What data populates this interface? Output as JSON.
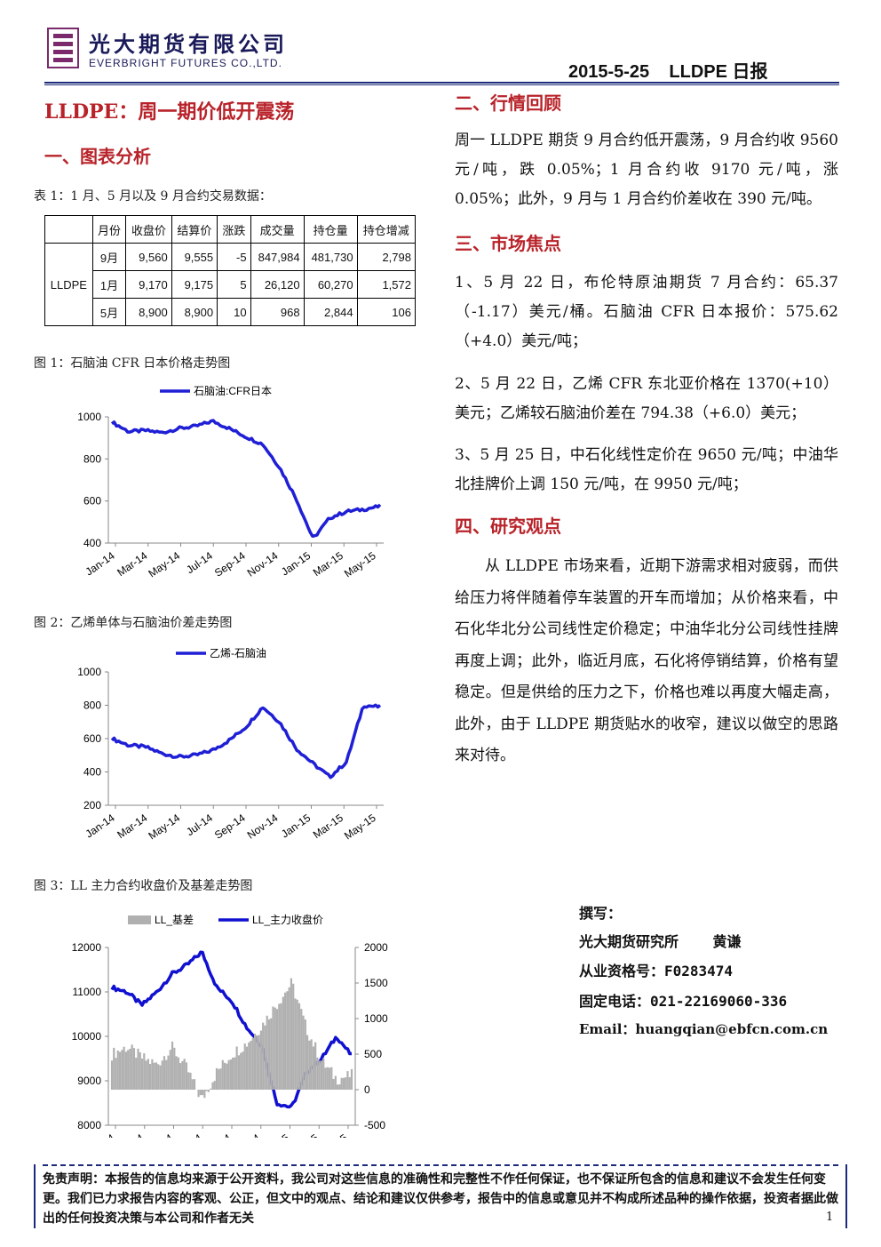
{
  "header": {
    "company_cn": "光大期货有限公司",
    "company_en": "EVERBRIGHT FUTURES CO.,LTD.",
    "date_title": "2015-5-25    LLDPE 日报"
  },
  "title": "LLDPE：周一期价低开震荡",
  "section1": {
    "heading": "一、图表分析",
    "table_caption": "表 1：1 月、5 月以及 9 月合约交易数据：",
    "table": {
      "headers": [
        "",
        "月份",
        "收盘价",
        "结算价",
        "涨跌",
        "成交量",
        "持仓量",
        "持仓增减"
      ],
      "product": "LLDPE",
      "rows": [
        [
          "9月",
          "9,560",
          "9,555",
          "-5",
          "847,984",
          "481,730",
          "2,798"
        ],
        [
          "1月",
          "9,170",
          "9,175",
          "5",
          "26,120",
          "60,270",
          "1,572"
        ],
        [
          "5月",
          "8,900",
          "8,900",
          "10",
          "968",
          "2,844",
          "106"
        ]
      ]
    }
  },
  "fig1": {
    "caption": "图 1：石脑油 CFR 日本价格走势图"
  },
  "fig2": {
    "caption": "图 2：乙烯单体与石脑油价差走势图"
  },
  "fig3": {
    "caption": "图 3：LL 主力合约收盘价及基差走势图"
  },
  "chart_data": [
    {
      "type": "line",
      "legend": [
        "石脑油:CFR日本"
      ],
      "ylim": [
        400,
        1000
      ],
      "yticks": [
        400,
        600,
        800,
        1000
      ],
      "xticks": [
        "Jan-14",
        "Mar-14",
        "May-14",
        "Jul-14",
        "Sep-14",
        "Nov-14",
        "Jan-15",
        "Mar-15",
        "May-15"
      ],
      "color": "#1f1fd6",
      "series": [
        {
          "name": "石脑油:CFR日本",
          "x": [
            "Jan-14",
            "Feb-14",
            "Mar-14",
            "Apr-14",
            "May-14",
            "Jun-14",
            "Jul-14",
            "Aug-14",
            "Sep-14",
            "Oct-14",
            "Nov-14",
            "Dec-14",
            "Jan-15",
            "Feb-15",
            "Mar-15",
            "Apr-15",
            "May-15"
          ],
          "values": [
            975,
            930,
            935,
            925,
            945,
            955,
            980,
            945,
            905,
            870,
            760,
            610,
            420,
            520,
            550,
            560,
            575
          ]
        }
      ]
    },
    {
      "type": "line",
      "legend": [
        "乙烯-石脑油"
      ],
      "ylim": [
        200,
        1000
      ],
      "yticks": [
        200,
        400,
        600,
        800,
        1000
      ],
      "xticks": [
        "Jan-14",
        "Mar-14",
        "May-14",
        "Jul-14",
        "Sep-14",
        "Nov-14",
        "Jan-15",
        "Mar-15",
        "May-15"
      ],
      "color": "#1f1fd6",
      "series": [
        {
          "name": "乙烯-石脑油",
          "x": [
            "Jan-14",
            "Feb-14",
            "Mar-14",
            "Apr-14",
            "May-14",
            "Jun-14",
            "Jul-14",
            "Aug-14",
            "Sep-14",
            "Oct-14",
            "Nov-14",
            "Dec-14",
            "Jan-15",
            "Feb-15",
            "Mar-15",
            "Apr-15",
            "May-15"
          ],
          "values": [
            600,
            560,
            550,
            510,
            490,
            500,
            530,
            590,
            670,
            790,
            700,
            540,
            450,
            370,
            460,
            800,
            790
          ]
        }
      ]
    },
    {
      "type": "line",
      "legend": [
        "LL_基差",
        "LL_主力收盘价"
      ],
      "ylim_left": [
        8000,
        12000
      ],
      "yticks_left": [
        8000,
        9000,
        10000,
        11000,
        12000
      ],
      "ylim_right": [
        -500,
        2000
      ],
      "yticks_right": [
        -500,
        0,
        500,
        1000,
        1500,
        2000
      ],
      "xticks": [
        "Jan-14",
        "Mar-14",
        "May-14",
        "Jul-14",
        "Sep-14",
        "Nov-14",
        "Jan-15",
        "Mar-15",
        "May-15"
      ],
      "series": [
        {
          "name": "LL_主力收盘价",
          "axis": "left",
          "color": "#1010d0",
          "x": [
            "Jan-14",
            "Feb-14",
            "Mar-14",
            "Apr-14",
            "May-14",
            "Jun-14",
            "Jul-14",
            "Aug-14",
            "Sep-14",
            "Oct-14",
            "Nov-14",
            "Dec-14",
            "Jan-15",
            "Feb-15",
            "Mar-15",
            "Apr-15",
            "May-15"
          ],
          "values": [
            11100,
            11000,
            10700,
            11000,
            11400,
            11600,
            11900,
            11100,
            10800,
            10200,
            9800,
            8500,
            8400,
            9200,
            9500,
            10000,
            9560
          ]
        },
        {
          "name": "LL_基差",
          "axis": "right",
          "color": "#b0b0b0",
          "type": "area",
          "x": [
            "Jan-14",
            "Feb-14",
            "Mar-14",
            "Apr-14",
            "May-14",
            "Jun-14",
            "Jul-14",
            "Aug-14",
            "Sep-14",
            "Oct-14",
            "Nov-14",
            "Dec-14",
            "Jan-15",
            "Feb-15",
            "Mar-15",
            "Apr-15",
            "May-15"
          ],
          "values": [
            500,
            600,
            450,
            350,
            600,
            300,
            -150,
            250,
            500,
            650,
            900,
            1200,
            1500,
            850,
            400,
            150,
            200
          ]
        }
      ]
    }
  ],
  "section2": {
    "heading": "二、行情回顾",
    "text": "周一 LLDPE 期货 9 月合约低开震荡，9 月合约收 9560 元/吨，跌 0.05%；1 月合约收 9170 元/吨，涨 0.05%；此外，9 月与 1 月合约价差收在 390 元/吨。"
  },
  "section3": {
    "heading": "三、市场焦点",
    "items": [
      "1、5 月 22 日，布伦特原油期货 7 月合约：65.37（-1.17）美元/桶。石脑油 CFR 日本报价：575.62（+4.0）美元/吨；",
      "2、5 月 22 日，乙烯 CFR 东北亚价格在 1370(+10）美元；乙烯较石脑油价差在 794.38（+6.0）美元；",
      "3、5 月 25 日，中石化线性定价在 9650 元/吨；中油华北挂牌价上调 150 元/吨，在 9950 元/吨；"
    ]
  },
  "section4": {
    "heading": "四、研究观点",
    "text": "从 LLDPE 市场来看，近期下游需求相对疲弱，而供给压力将伴随着停车装置的开车而增加；从价格来看，中石化华北分公司线性定价稳定；中油华北分公司线性挂牌再度上调；此外，临近月底，石化将停销结算，价格有望稳定。但是供给的压力之下，价格也难以再度大幅走高，此外，由于 LLDPE 期货贴水的收窄，建议以做空的思路来对待。"
  },
  "author": {
    "label": "撰写：",
    "name": "光大期货研究所    黄谦",
    "license": "从业资格号：F0283474",
    "phone": "固定电话：021-22169060-336",
    "email": "Email：huangqian@ebfcn.com.cn"
  },
  "disclaimer": "免责声明：本报告的信息均来源于公开资料，我公司对这些信息的准确性和完整性不作任何保证，也不保证所包含的信息和建议不会发生任何变更。我们已力求报告内容的客观、公正，但文中的观点、结论和建议仅供参考，报告中的信息或意见并不构成所述品种的操作依据，投资者据此做出的任何投资决策与本公司和作者无关",
  "page_number": "1"
}
